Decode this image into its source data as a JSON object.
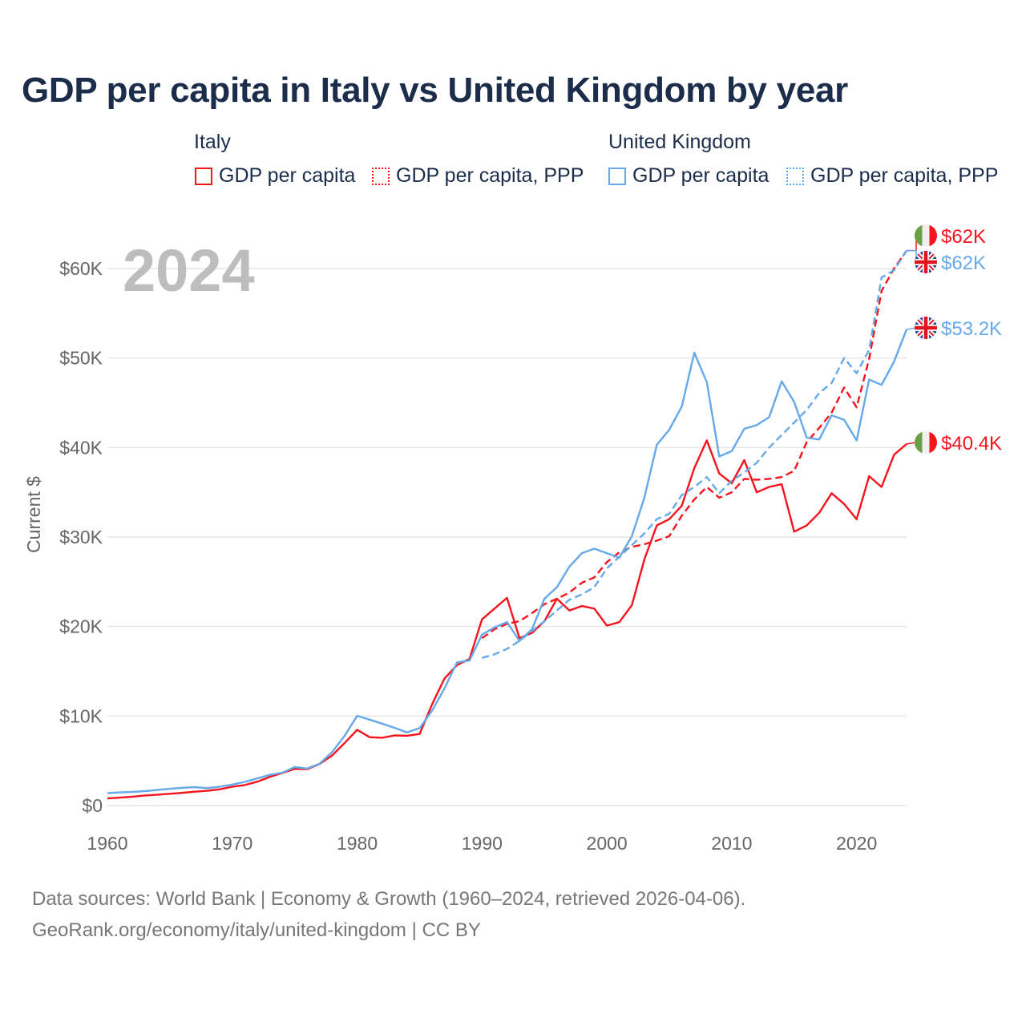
{
  "title": "GDP per capita in Italy vs United Kingdom by year",
  "year_label": "2024",
  "legend": {
    "italy": {
      "title": "Italy",
      "items": [
        "GDP per capita",
        "GDP per capita, PPP"
      ]
    },
    "uk": {
      "title": "United Kingdom",
      "items": [
        "GDP per capita",
        "GDP per capita, PPP"
      ]
    }
  },
  "footer": {
    "line1": "Data sources: World Bank | Economy & Growth (1960–2024, retrieved 2026-04-06).",
    "line2": "GeoRank.org/economy/italy/united-kingdom | CC BY"
  },
  "colors": {
    "italy": "#f5141e",
    "uk": "#65a9ea",
    "title": "#1b2d4b"
  },
  "chart_data": {
    "type": "line",
    "title": "GDP per capita in Italy vs United Kingdom by year",
    "xlabel": "",
    "ylabel": "Current $",
    "xlim": [
      1960,
      2024
    ],
    "ylim": [
      0,
      60000
    ],
    "x_ticks": [
      1960,
      1970,
      1980,
      1990,
      2000,
      2010,
      2020
    ],
    "x_tick_labels": [
      "1960",
      "1970",
      "1980",
      "1990",
      "2000",
      "2010",
      "2020"
    ],
    "y_ticks": [
      0,
      10000,
      20000,
      30000,
      40000,
      50000,
      60000
    ],
    "y_tick_labels": [
      "$0",
      "$10K",
      "$20K",
      "$30K",
      "$40K",
      "$50K",
      "$60K"
    ],
    "grid": true,
    "legend_placement": "top",
    "series": [
      {
        "name": "Italy GDP per capita",
        "country": "italy",
        "dashed": false,
        "start": 1960,
        "end_label": "$40.4K",
        "values": [
          0.8,
          0.89,
          0.99,
          1.13,
          1.22,
          1.32,
          1.42,
          1.55,
          1.66,
          1.82,
          2.11,
          2.29,
          2.67,
          3.21,
          3.64,
          4.1,
          4.07,
          4.66,
          5.6,
          6.99,
          8.46,
          7.64,
          7.58,
          7.84,
          7.8,
          8.0,
          11.3,
          14.2,
          15.7,
          16.4,
          20.8,
          22.0,
          23.2,
          18.7,
          19.3,
          20.6,
          23.1,
          21.8,
          22.3,
          22.0,
          20.1,
          20.5,
          22.4,
          27.5,
          31.3,
          32.0,
          33.5,
          37.7,
          40.8,
          37.1,
          36.0,
          38.6,
          35.0,
          35.6,
          35.9,
          30.6,
          31.3,
          32.7,
          34.9,
          33.7,
          32.0,
          36.8,
          35.6,
          39.2,
          40.4
        ]
      },
      {
        "name": "Italy GDP per capita, PPP",
        "country": "italy",
        "dashed": true,
        "start": 1990,
        "end_label": "$62K",
        "values": [
          18.7,
          19.7,
          20.3,
          20.6,
          21.5,
          22.5,
          23.1,
          23.8,
          24.9,
          25.5,
          27.2,
          28.3,
          28.9,
          29.2,
          29.6,
          30.1,
          32.4,
          34.2,
          35.6,
          34.4,
          35.0,
          36.5,
          36.4,
          36.5,
          36.7,
          37.4,
          40.6,
          42.2,
          43.9,
          46.7,
          44.5,
          49.9,
          57.5,
          60.0,
          62.0
        ]
      },
      {
        "name": "United Kingdom GDP per capita",
        "country": "uk",
        "dashed": false,
        "start": 1960,
        "end_label": "$53.2K",
        "values": [
          1.4,
          1.47,
          1.53,
          1.61,
          1.75,
          1.87,
          1.99,
          2.06,
          1.95,
          2.1,
          2.35,
          2.65,
          3.03,
          3.43,
          3.67,
          4.3,
          4.14,
          4.68,
          5.98,
          7.81,
          10.03,
          9.6,
          9.15,
          8.69,
          8.18,
          8.65,
          10.6,
          13.1,
          16.0,
          16.2,
          19.1,
          19.9,
          20.5,
          18.4,
          19.7,
          23.1,
          24.4,
          26.7,
          28.2,
          28.7,
          28.2,
          27.7,
          30.1,
          34.4,
          40.3,
          42.0,
          44.6,
          50.6,
          47.3,
          39.0,
          39.6,
          42.1,
          42.5,
          43.4,
          47.4,
          45.1,
          41.1,
          40.9,
          43.6,
          43.1,
          40.8,
          47.6,
          47.0,
          49.6,
          53.2
        ]
      },
      {
        "name": "United Kingdom GDP per capita, PPP",
        "country": "uk",
        "dashed": true,
        "start": 1990,
        "end_label": "$62K",
        "values": [
          16.5,
          16.9,
          17.5,
          18.4,
          19.5,
          20.6,
          21.8,
          23.0,
          23.6,
          24.4,
          26.5,
          27.8,
          29.1,
          30.4,
          32.0,
          32.6,
          34.7,
          35.6,
          36.7,
          34.9,
          36.3,
          37.2,
          38.3,
          40.0,
          41.4,
          42.8,
          44.2,
          46.1,
          47.2,
          50.0,
          48.3,
          50.9,
          59.0,
          59.8,
          62.0
        ]
      }
    ],
    "value_unit": "thousand US$"
  }
}
